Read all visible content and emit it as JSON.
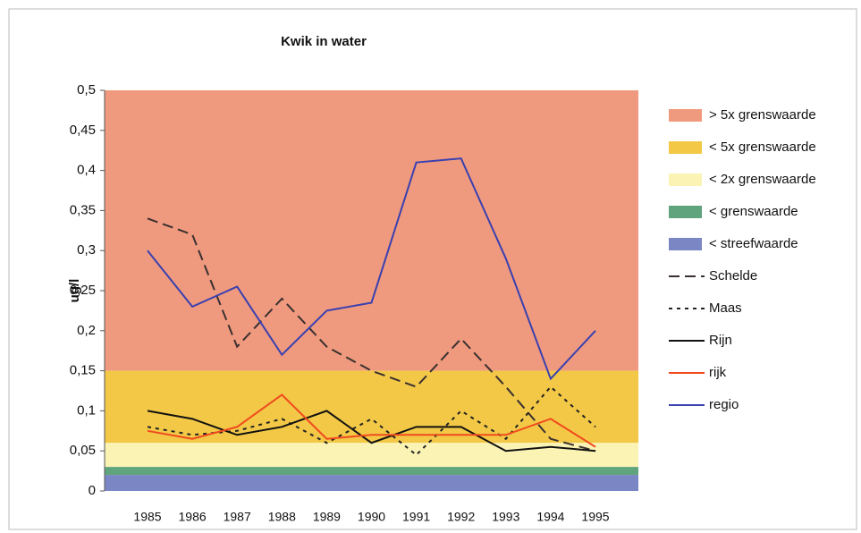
{
  "chart_data": {
    "type": "line",
    "title": "Kwik in water",
    "y_label": "ug/l",
    "categories": [
      "1985",
      "1986",
      "1987",
      "1988",
      "1989",
      "1990",
      "1991",
      "1992",
      "1993",
      "1994",
      "1995"
    ],
    "ylim": [
      0,
      0.5
    ],
    "yticks": [
      0,
      {
        "value": 0.05,
        "label": "0,05"
      },
      {
        "value": 0.1,
        "label": "0,1"
      },
      {
        "value": 0.15,
        "label": "0,15"
      },
      {
        "value": 0.2,
        "label": "0,2"
      },
      {
        "value": 0.25,
        "label": "0,25"
      },
      {
        "value": 0.3,
        "label": "0,3"
      },
      {
        "value": 0.35,
        "label": "0,35"
      },
      {
        "value": 0.4,
        "label": "0,4"
      },
      {
        "value": 0.45,
        "label": "0,45"
      },
      {
        "value": 0.5,
        "label": "0,5"
      }
    ],
    "bands": [
      {
        "name": "> 5x grenswaarde",
        "color": "#ef9a7e",
        "from": 0.15,
        "to": 0.5
      },
      {
        "name": "< 5x grenswaarde",
        "color": "#f2c846",
        "from": 0.06,
        "to": 0.15
      },
      {
        "name": "< 2x grenswaarde",
        "color": "#faf3b4",
        "from": 0.03,
        "to": 0.06
      },
      {
        "name": "< grenswaarde",
        "color": "#5fa47c",
        "from": 0.02,
        "to": 0.03
      },
      {
        "name": "< streefwaarde",
        "color": "#7b86c4",
        "from": 0,
        "to": 0.02
      }
    ],
    "series": [
      {
        "name": "Schelde",
        "color": "#3a3030",
        "style": "dashed",
        "values": [
          0.34,
          0.32,
          0.18,
          0.24,
          0.18,
          0.15,
          0.13,
          0.19,
          0.13,
          0.065,
          0.05
        ]
      },
      {
        "name": "Maas",
        "color": "#222222",
        "style": "dotted",
        "values": [
          0.08,
          0.07,
          0.075,
          0.09,
          0.06,
          0.09,
          0.045,
          0.1,
          0.065,
          0.13,
          0.08
        ]
      },
      {
        "name": "Rijn",
        "color": "#111111",
        "style": "solid",
        "values": [
          0.1,
          0.09,
          0.07,
          0.08,
          0.1,
          0.06,
          0.08,
          0.08,
          0.05,
          0.055,
          0.05
        ]
      },
      {
        "name": "rijk",
        "color": "#f04a1e",
        "style": "solid",
        "values": [
          0.075,
          0.065,
          0.08,
          0.12,
          0.065,
          0.07,
          0.07,
          0.07,
          0.07,
          0.09,
          0.055
        ]
      },
      {
        "name": "regio",
        "color": "#3a40b0",
        "style": "solid",
        "values": [
          0.3,
          0.23,
          0.255,
          0.17,
          0.225,
          0.235,
          0.41,
          0.415,
          0.29,
          0.14,
          0.2
        ]
      }
    ]
  }
}
